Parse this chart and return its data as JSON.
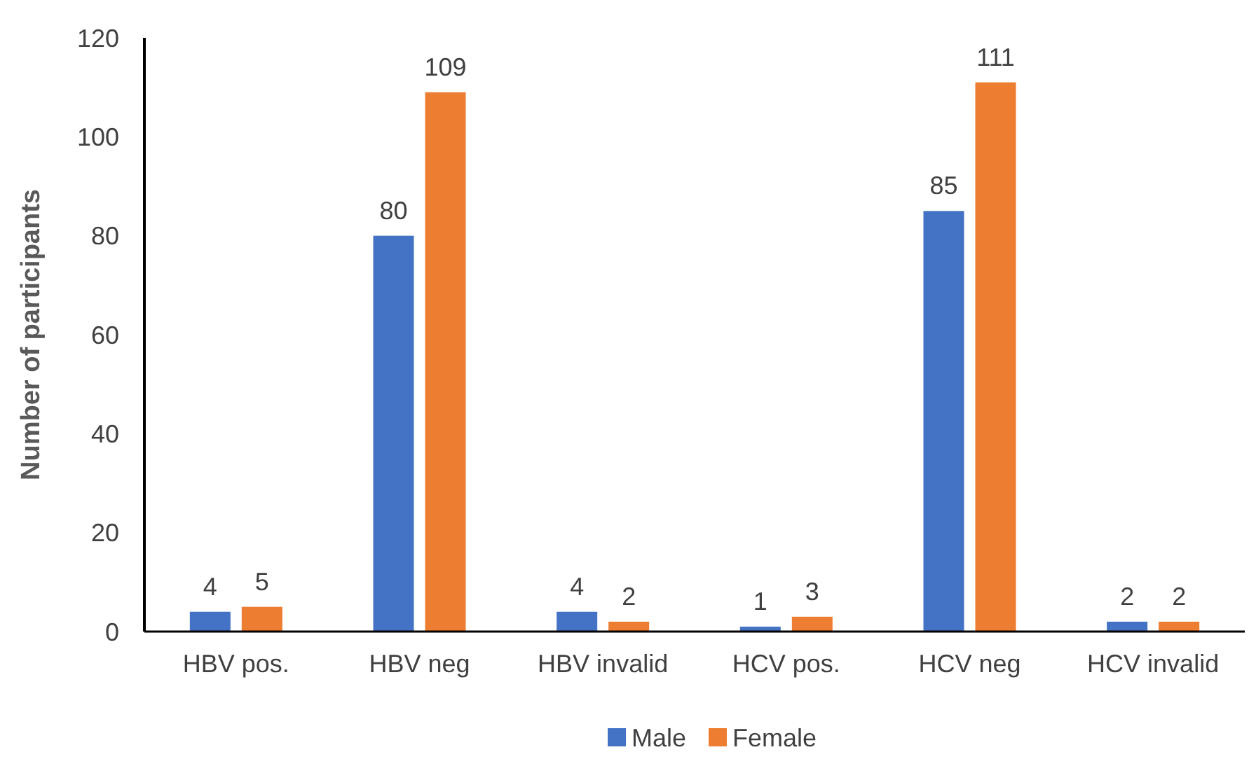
{
  "chart_data": {
    "type": "bar",
    "ylabel": "Number of participants",
    "categories": [
      "HBV pos.",
      "HBV neg",
      "HBV invalid",
      "HCV pos.",
      "HCV neg",
      "HCV invalid"
    ],
    "series": [
      {
        "name": "Male",
        "color": "#4472c4",
        "values": [
          4,
          80,
          4,
          1,
          85,
          2
        ]
      },
      {
        "name": "Female",
        "color": "#ed7d31",
        "values": [
          5,
          109,
          2,
          3,
          111,
          2
        ]
      }
    ],
    "ylim": [
      0,
      120
    ],
    "yticks": [
      0,
      20,
      40,
      60,
      80,
      100,
      120
    ],
    "data_labels": true,
    "legend": "bottom",
    "grid": false
  }
}
